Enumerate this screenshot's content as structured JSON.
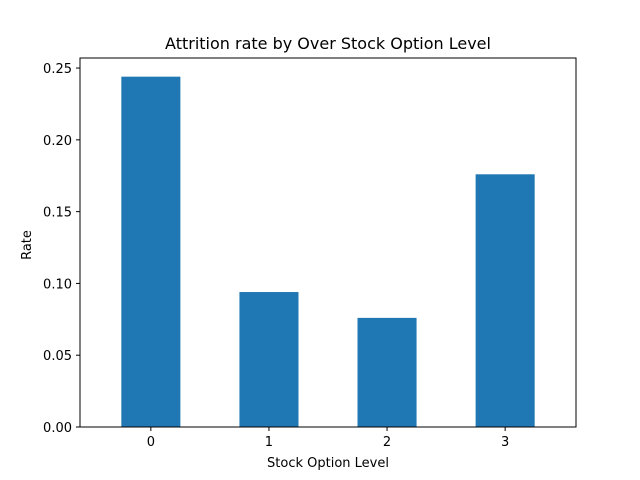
{
  "chart_data": {
    "type": "bar",
    "title": "Attrition rate by Over Stock Option Level",
    "xlabel": "Stock Option Level",
    "ylabel": "Rate",
    "categories": [
      "0",
      "1",
      "2",
      "3"
    ],
    "values": [
      0.244,
      0.094,
      0.076,
      0.176
    ],
    "ylim": [
      0,
      0.257
    ],
    "yticks": [
      0.0,
      0.05,
      0.1,
      0.15,
      0.2,
      0.25
    ],
    "ytick_labels": [
      "0.00",
      "0.05",
      "0.10",
      "0.15",
      "0.20",
      "0.25"
    ],
    "bar_color": "#1f77b4",
    "grid": false,
    "legend": "none"
  }
}
